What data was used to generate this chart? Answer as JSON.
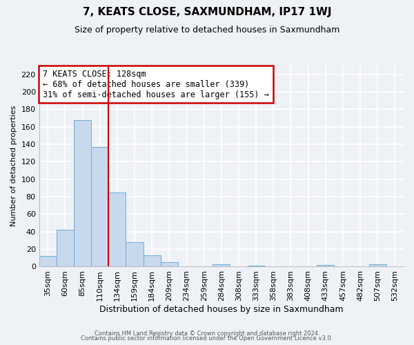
{
  "title": "7, KEATS CLOSE, SAXMUNDHAM, IP17 1WJ",
  "subtitle": "Size of property relative to detached houses in Saxmundham",
  "xlabel": "Distribution of detached houses by size in Saxmundham",
  "ylabel": "Number of detached properties",
  "bar_labels": [
    "35sqm",
    "60sqm",
    "85sqm",
    "110sqm",
    "134sqm",
    "159sqm",
    "184sqm",
    "209sqm",
    "234sqm",
    "259sqm",
    "284sqm",
    "308sqm",
    "333sqm",
    "358sqm",
    "383sqm",
    "408sqm",
    "433sqm",
    "457sqm",
    "482sqm",
    "507sqm",
    "532sqm"
  ],
  "bar_values": [
    12,
    42,
    168,
    137,
    85,
    28,
    13,
    5,
    0,
    0,
    3,
    0,
    1,
    0,
    0,
    0,
    2,
    0,
    0,
    3,
    0
  ],
  "bar_color": "#c8d9ee",
  "bar_edgecolor": "#6aadd5",
  "ylim": [
    0,
    230
  ],
  "yticks": [
    0,
    20,
    40,
    60,
    80,
    100,
    120,
    140,
    160,
    180,
    200,
    220
  ],
  "vline_color": "#cc0000",
  "annotation_box_text": "7 KEATS CLOSE: 128sqm\n← 68% of detached houses are smaller (339)\n31% of semi-detached houses are larger (155) →",
  "annotation_box_edgecolor": "#cc0000",
  "background_color": "#eef2f7",
  "grid_color": "#ffffff",
  "footer_line1": "Contains HM Land Registry data © Crown copyright and database right 2024.",
  "footer_line2": "Contains public sector information licensed under the Open Government Licence v3.0.",
  "title_fontsize": 11,
  "subtitle_fontsize": 9,
  "ylabel_fontsize": 8,
  "xlabel_fontsize": 9
}
